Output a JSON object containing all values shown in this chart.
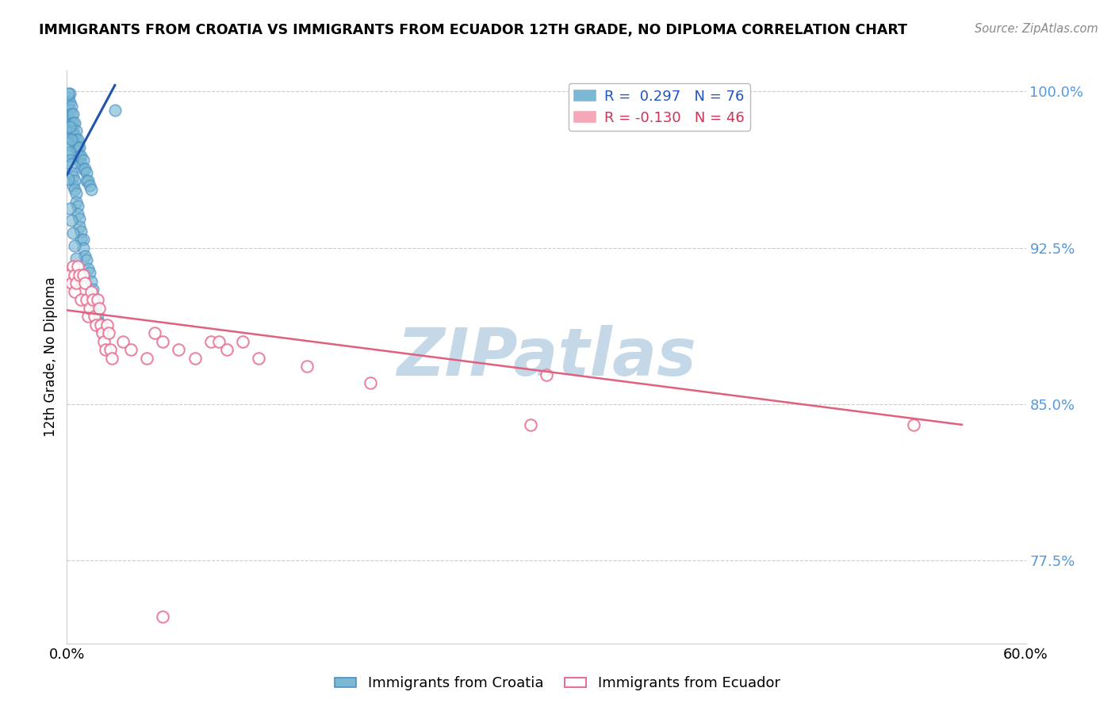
{
  "title": "IMMIGRANTS FROM CROATIA VS IMMIGRANTS FROM ECUADOR 12TH GRADE, NO DIPLOMA CORRELATION CHART",
  "source": "Source: ZipAtlas.com",
  "ylabel": "12th Grade, No Diploma",
  "xlim": [
    0.0,
    0.6
  ],
  "ylim": [
    0.735,
    1.01
  ],
  "xtick_positions": [
    0.0,
    0.6
  ],
  "xtick_labels": [
    "0.0%",
    "60.0%"
  ],
  "ytick_positions": [
    0.775,
    0.85,
    0.925,
    1.0
  ],
  "ytick_labels": [
    "77.5%",
    "85.0%",
    "92.5%",
    "100.0%"
  ],
  "croatia_color": "#7bb8d4",
  "ecuador_color": "#f4a8b8",
  "croatia_edge_color": "#4a90c4",
  "ecuador_edge_color": "#e87090",
  "croatia_line_color": "#2255aa",
  "ecuador_line_color": "#e06080",
  "watermark_text": "ZIPatlas",
  "watermark_color": "#c5d8e8",
  "legend_labels": [
    "R =  0.297   N = 76",
    "R = -0.130   N = 46"
  ],
  "legend_text_colors": [
    "#2255bb",
    "#cc3355"
  ],
  "legend_patch_colors": [
    "#7bb8d4",
    "#f4a8b8"
  ],
  "bottom_legend_labels": [
    "Immigrants from Croatia",
    "Immigrants from Ecuador"
  ],
  "croatia_scatter": [
    [
      0.001,
      0.997
    ],
    [
      0.001,
      0.993
    ],
    [
      0.002,
      0.999
    ],
    [
      0.002,
      0.995
    ],
    [
      0.002,
      0.991
    ],
    [
      0.002,
      0.987
    ],
    [
      0.003,
      0.993
    ],
    [
      0.003,
      0.989
    ],
    [
      0.003,
      0.985
    ],
    [
      0.003,
      0.981
    ],
    [
      0.004,
      0.989
    ],
    [
      0.004,
      0.985
    ],
    [
      0.004,
      0.981
    ],
    [
      0.004,
      0.977
    ],
    [
      0.005,
      0.985
    ],
    [
      0.005,
      0.979
    ],
    [
      0.005,
      0.975
    ],
    [
      0.006,
      0.981
    ],
    [
      0.006,
      0.977
    ],
    [
      0.006,
      0.973
    ],
    [
      0.007,
      0.977
    ],
    [
      0.007,
      0.973
    ],
    [
      0.007,
      0.969
    ],
    [
      0.008,
      0.973
    ],
    [
      0.008,
      0.969
    ],
    [
      0.009,
      0.969
    ],
    [
      0.009,
      0.965
    ],
    [
      0.01,
      0.967
    ],
    [
      0.01,
      0.963
    ],
    [
      0.011,
      0.963
    ],
    [
      0.012,
      0.961
    ],
    [
      0.012,
      0.957
    ],
    [
      0.013,
      0.957
    ],
    [
      0.014,
      0.955
    ],
    [
      0.015,
      0.953
    ],
    [
      0.001,
      0.975
    ],
    [
      0.001,
      0.969
    ],
    [
      0.002,
      0.971
    ],
    [
      0.002,
      0.967
    ],
    [
      0.003,
      0.965
    ],
    [
      0.003,
      0.961
    ],
    [
      0.004,
      0.959
    ],
    [
      0.004,
      0.955
    ],
    [
      0.005,
      0.957
    ],
    [
      0.005,
      0.953
    ],
    [
      0.006,
      0.951
    ],
    [
      0.006,
      0.947
    ],
    [
      0.007,
      0.945
    ],
    [
      0.007,
      0.941
    ],
    [
      0.008,
      0.939
    ],
    [
      0.008,
      0.935
    ],
    [
      0.009,
      0.933
    ],
    [
      0.009,
      0.929
    ],
    [
      0.01,
      0.929
    ],
    [
      0.01,
      0.925
    ],
    [
      0.011,
      0.921
    ],
    [
      0.012,
      0.919
    ],
    [
      0.013,
      0.915
    ],
    [
      0.014,
      0.913
    ],
    [
      0.015,
      0.909
    ],
    [
      0.016,
      0.905
    ],
    [
      0.017,
      0.901
    ],
    [
      0.018,
      0.897
    ],
    [
      0.019,
      0.893
    ],
    [
      0.02,
      0.889
    ],
    [
      0.021,
      0.887
    ],
    [
      0.001,
      0.958
    ],
    [
      0.002,
      0.944
    ],
    [
      0.003,
      0.938
    ],
    [
      0.004,
      0.932
    ],
    [
      0.005,
      0.926
    ],
    [
      0.006,
      0.92
    ],
    [
      0.022,
      0.885
    ],
    [
      0.03,
      0.991
    ],
    [
      0.001,
      0.999
    ],
    [
      0.002,
      0.983
    ],
    [
      0.003,
      0.977
    ]
  ],
  "ecuador_scatter": [
    [
      0.002,
      0.912
    ],
    [
      0.003,
      0.908
    ],
    [
      0.004,
      0.916
    ],
    [
      0.005,
      0.912
    ],
    [
      0.005,
      0.904
    ],
    [
      0.006,
      0.908
    ],
    [
      0.007,
      0.916
    ],
    [
      0.008,
      0.912
    ],
    [
      0.009,
      0.9
    ],
    [
      0.01,
      0.912
    ],
    [
      0.011,
      0.908
    ],
    [
      0.012,
      0.9
    ],
    [
      0.013,
      0.892
    ],
    [
      0.014,
      0.896
    ],
    [
      0.015,
      0.904
    ],
    [
      0.016,
      0.9
    ],
    [
      0.017,
      0.892
    ],
    [
      0.018,
      0.888
    ],
    [
      0.019,
      0.9
    ],
    [
      0.02,
      0.896
    ],
    [
      0.021,
      0.888
    ],
    [
      0.022,
      0.884
    ],
    [
      0.023,
      0.88
    ],
    [
      0.024,
      0.876
    ],
    [
      0.025,
      0.888
    ],
    [
      0.026,
      0.884
    ],
    [
      0.027,
      0.876
    ],
    [
      0.028,
      0.872
    ],
    [
      0.035,
      0.88
    ],
    [
      0.04,
      0.876
    ],
    [
      0.05,
      0.872
    ],
    [
      0.055,
      0.884
    ],
    [
      0.06,
      0.88
    ],
    [
      0.07,
      0.876
    ],
    [
      0.08,
      0.872
    ],
    [
      0.09,
      0.88
    ],
    [
      0.095,
      0.88
    ],
    [
      0.1,
      0.876
    ],
    [
      0.11,
      0.88
    ],
    [
      0.12,
      0.872
    ],
    [
      0.15,
      0.868
    ],
    [
      0.19,
      0.86
    ],
    [
      0.29,
      0.84
    ],
    [
      0.3,
      0.864
    ],
    [
      0.53,
      0.84
    ],
    [
      0.06,
      0.748
    ]
  ],
  "croatia_line": [
    0.0,
    0.96,
    0.03,
    1.003
  ],
  "ecuador_line": [
    0.0,
    0.895,
    0.56,
    0.84
  ]
}
